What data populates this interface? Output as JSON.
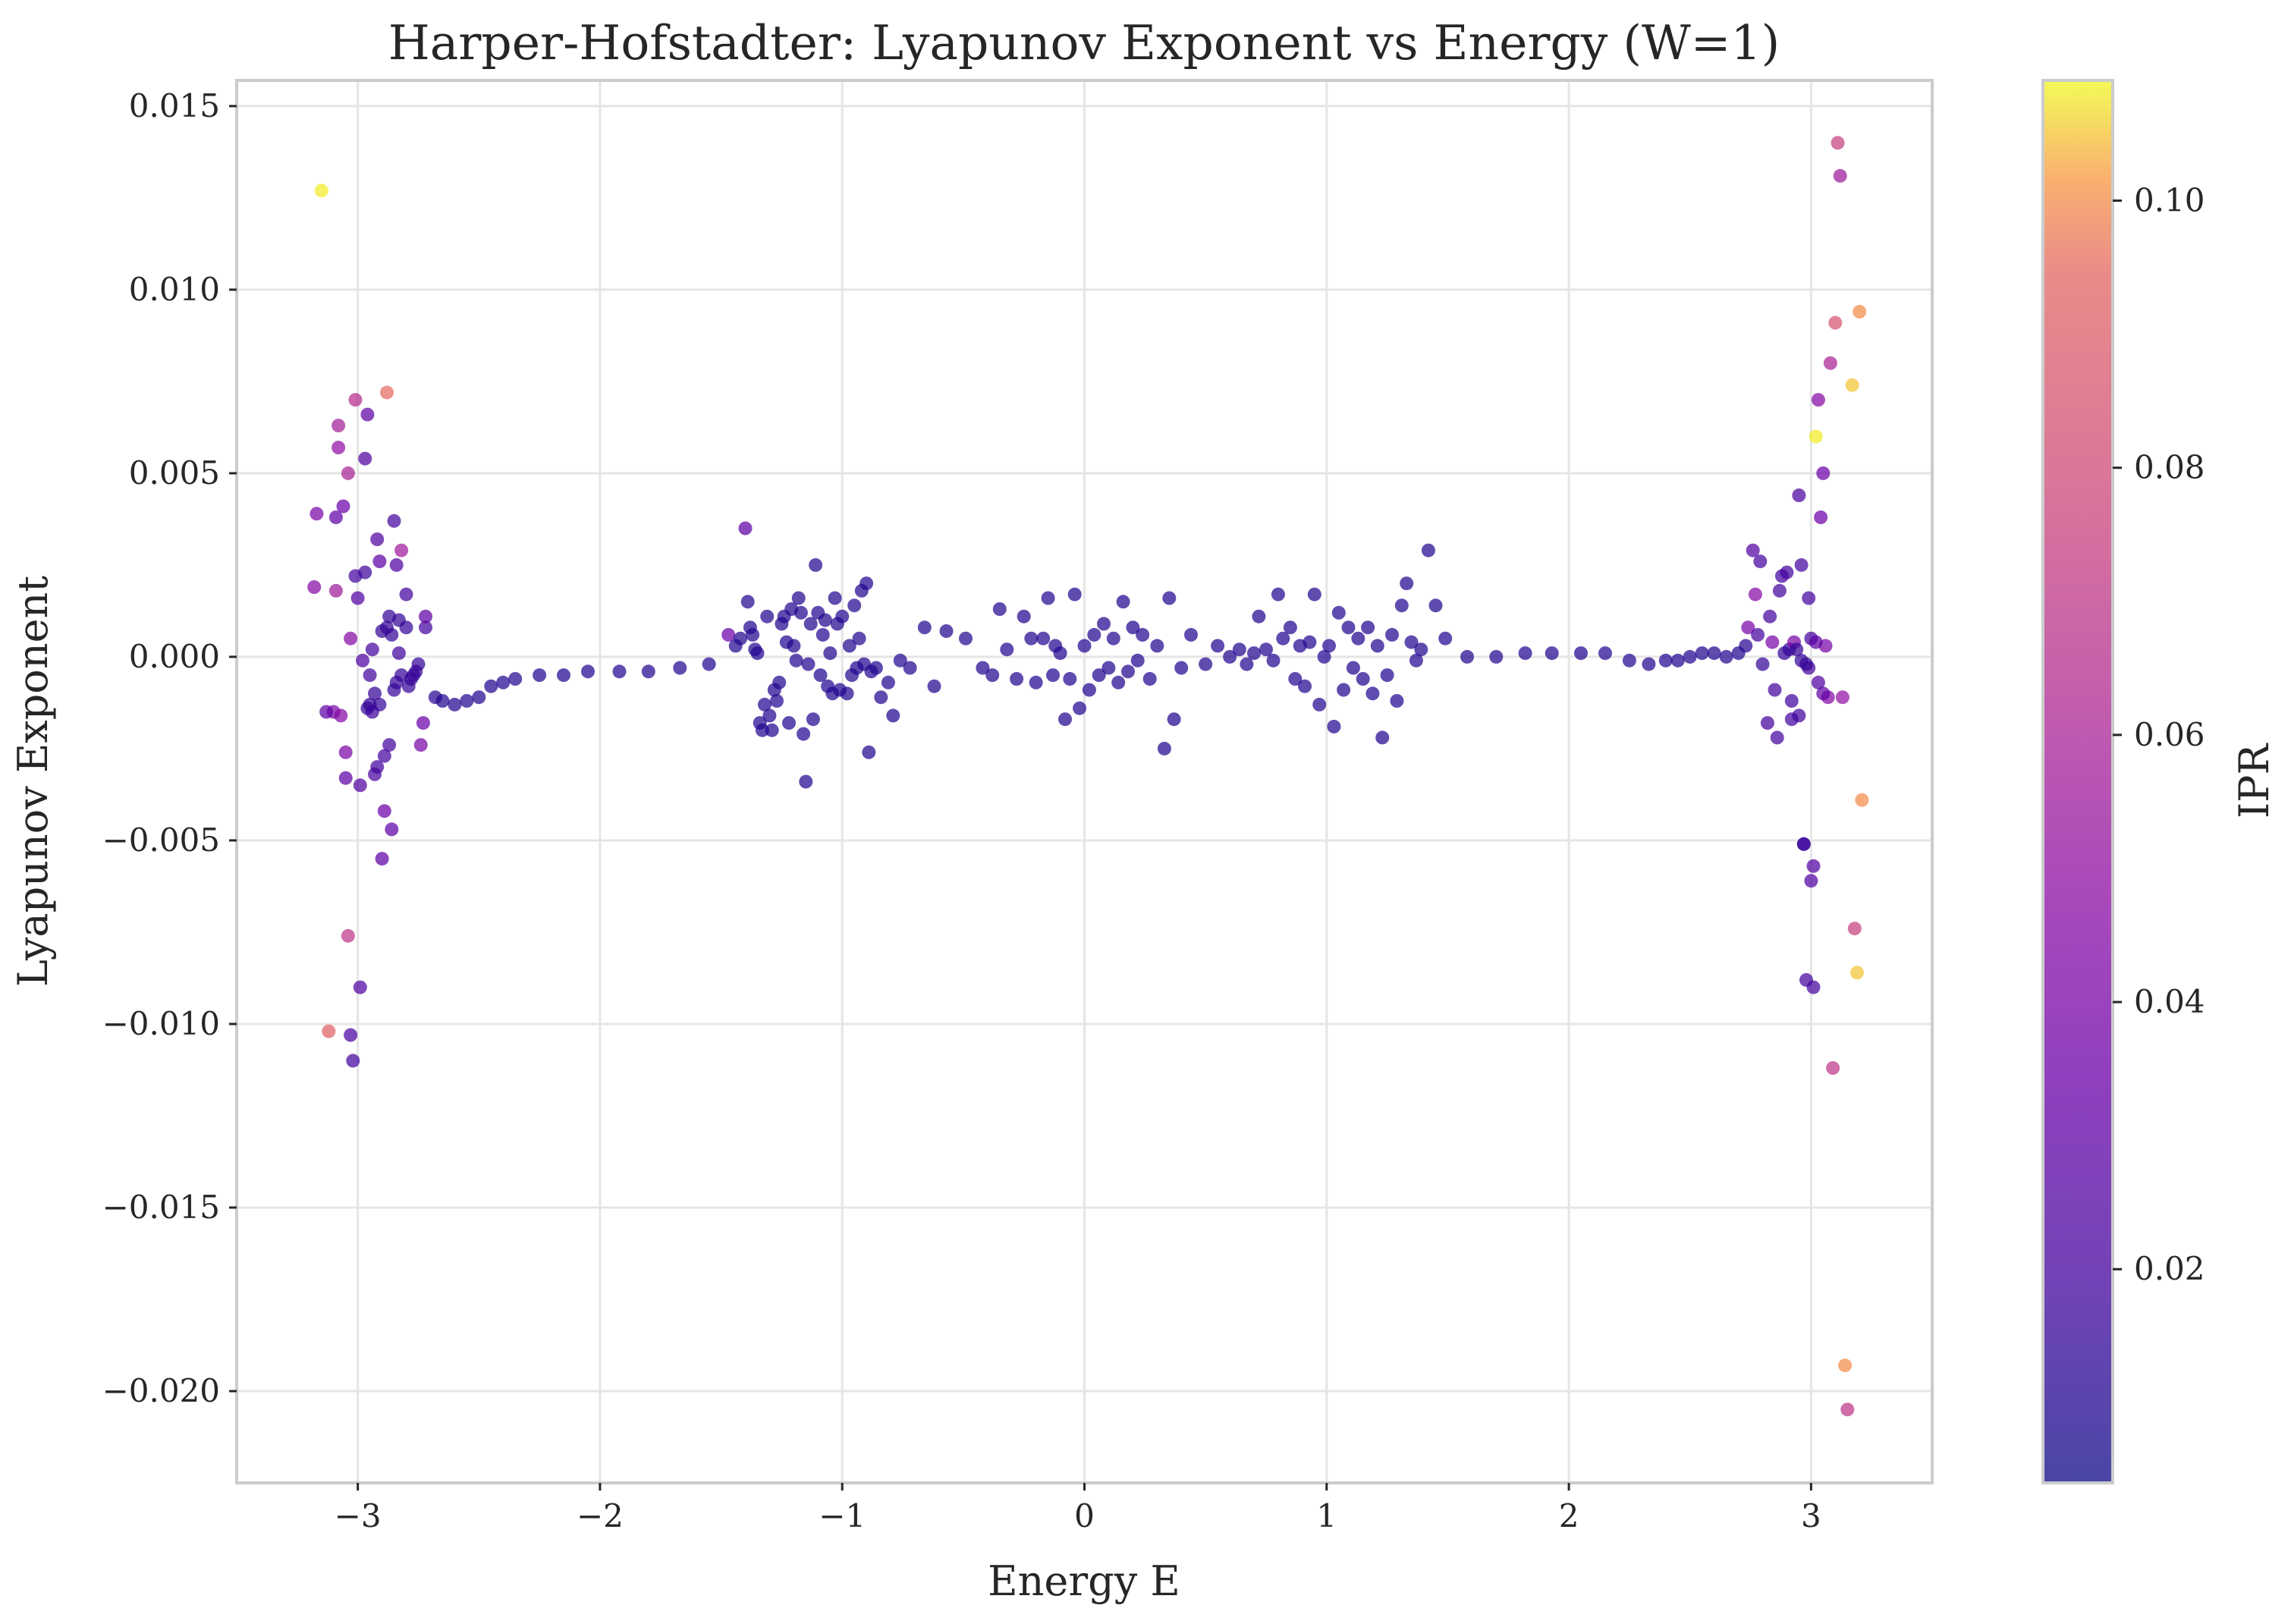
{
  "chart_data": {
    "type": "scatter",
    "title": "Harper-Hofstadter: Lyapunov Exponent vs Energy (W=1)",
    "xlabel": "Energy E",
    "ylabel": "Lyapunov Exponent",
    "xlim": [
      -3.5,
      3.5
    ],
    "ylim": [
      -0.0225,
      0.0157
    ],
    "xticks": [
      -3,
      -2,
      -1,
      0,
      1,
      2,
      3
    ],
    "xtick_labels": [
      "−3",
      "−2",
      "−1",
      "0",
      "1",
      "2",
      "3"
    ],
    "yticks": [
      -0.02,
      -0.015,
      -0.01,
      -0.005,
      0,
      0.005,
      0.01,
      0.015
    ],
    "ytick_labels": [
      "−0.020",
      "−0.015",
      "−0.010",
      "−0.005",
      "0.000",
      "0.005",
      "0.010",
      "0.015"
    ],
    "grid": true,
    "colormap": "plasma",
    "colorbar": {
      "label": "IPR",
      "range": [
        0.004,
        0.109
      ],
      "ticks": [
        0.02,
        0.04,
        0.06,
        0.08,
        0.1
      ],
      "tick_labels": [
        "0.02",
        "0.04",
        "0.06",
        "0.08",
        "0.10"
      ]
    },
    "points": [
      [
        -3.15,
        0.0127,
        0.108
      ],
      [
        -3.12,
        -0.0102,
        0.092
      ],
      [
        -3.1,
        -0.0015,
        0.04
      ],
      [
        -3.09,
        0.0018,
        0.055
      ],
      [
        -3.08,
        0.0063,
        0.058
      ],
      [
        -3.07,
        -0.0016,
        0.045
      ],
      [
        -3.06,
        0.0041,
        0.035
      ],
      [
        -3.05,
        -0.0026,
        0.04
      ],
      [
        -3.04,
        -0.0076,
        0.07
      ],
      [
        -3.03,
        -0.0103,
        0.022
      ],
      [
        -3.02,
        -0.011,
        0.02
      ],
      [
        -3.01,
        0.0022,
        0.02
      ],
      [
        -3.0,
        0.0016,
        0.025
      ],
      [
        -2.99,
        -0.009,
        0.025
      ],
      [
        -2.98,
        -0.0001,
        0.025
      ],
      [
        -2.97,
        0.0054,
        0.025
      ],
      [
        -2.96,
        0.0066,
        0.03
      ],
      [
        -2.95,
        -0.0005,
        0.02
      ],
      [
        -2.94,
        0.0002,
        0.02
      ],
      [
        -2.93,
        -0.0032,
        0.022
      ],
      [
        -2.92,
        0.0032,
        0.025
      ],
      [
        -2.91,
        0.0026,
        0.03
      ],
      [
        -2.9,
        -0.0055,
        0.03
      ],
      [
        -2.89,
        -0.0042,
        0.035
      ],
      [
        -2.88,
        0.0072,
        0.095
      ],
      [
        -2.87,
        -0.0024,
        0.02
      ],
      [
        -2.86,
        -0.0047,
        0.03
      ],
      [
        -2.85,
        0.0037,
        0.02
      ],
      [
        -2.84,
        0.0025,
        0.025
      ],
      [
        -2.83,
        0.0001,
        0.02
      ],
      [
        -2.82,
        0.0029,
        0.055
      ],
      [
        -2.8,
        0.0017,
        0.02
      ],
      [
        -2.78,
        -0.0006,
        0.018
      ],
      [
        -2.76,
        -0.0004,
        0.018
      ],
      [
        -2.74,
        -0.0024,
        0.04
      ],
      [
        -2.73,
        -0.0018,
        0.035
      ],
      [
        -3.17,
        0.0039,
        0.04
      ],
      [
        -3.13,
        -0.0015,
        0.03
      ],
      [
        -3.18,
        0.0019,
        0.045
      ],
      [
        -3.04,
        0.005,
        0.06
      ],
      [
        -3.03,
        0.0005,
        0.045
      ],
      [
        -3.05,
        -0.0033,
        0.03
      ],
      [
        -3.01,
        0.007,
        0.065
      ],
      [
        -2.99,
        -0.0035,
        0.025
      ],
      [
        -2.97,
        0.0023,
        0.018
      ],
      [
        -2.96,
        -0.0014,
        0.015
      ],
      [
        -2.95,
        -0.0013,
        0.015
      ],
      [
        -2.94,
        -0.0015,
        0.018
      ],
      [
        -2.93,
        -0.001,
        0.015
      ],
      [
        -2.92,
        -0.003,
        0.02
      ],
      [
        -2.91,
        -0.0013,
        0.015
      ],
      [
        -2.9,
        0.0007,
        0.015
      ],
      [
        -2.89,
        -0.0027,
        0.02
      ],
      [
        -2.88,
        0.0008,
        0.015
      ],
      [
        -2.87,
        0.0011,
        0.015
      ],
      [
        -2.86,
        0.0006,
        0.015
      ],
      [
        -2.85,
        -0.0009,
        0.015
      ],
      [
        -2.84,
        -0.0007,
        0.015
      ],
      [
        -2.83,
        0.001,
        0.015
      ],
      [
        -2.82,
        -0.0005,
        0.015
      ],
      [
        -2.8,
        0.0008,
        0.015
      ],
      [
        -2.79,
        -0.0008,
        0.015
      ],
      [
        -2.77,
        -0.0005,
        0.015
      ],
      [
        -2.75,
        -0.0002,
        0.015
      ],
      [
        -2.72,
        0.0008,
        0.02
      ],
      [
        -2.72,
        0.0011,
        0.03
      ],
      [
        -3.09,
        0.0038,
        0.03
      ],
      [
        -3.08,
        0.0057,
        0.05
      ],
      [
        -2.68,
        -0.0011,
        0.012
      ],
      [
        -2.65,
        -0.0012,
        0.01
      ],
      [
        -2.6,
        -0.0013,
        0.01
      ],
      [
        -2.55,
        -0.0012,
        0.01
      ],
      [
        -2.5,
        -0.0011,
        0.01
      ],
      [
        -2.45,
        -0.0008,
        0.01
      ],
      [
        -2.4,
        -0.0007,
        0.01
      ],
      [
        -2.35,
        -0.0006,
        0.01
      ],
      [
        -2.25,
        -0.0005,
        0.01
      ],
      [
        -2.15,
        -0.0005,
        0.01
      ],
      [
        -2.05,
        -0.0004,
        0.01
      ],
      [
        -1.92,
        -0.0004,
        0.01
      ],
      [
        -1.8,
        -0.0004,
        0.01
      ],
      [
        -1.67,
        -0.0003,
        0.01
      ],
      [
        -1.55,
        -0.0002,
        0.01
      ],
      [
        -1.47,
        0.0006,
        0.035
      ],
      [
        -1.44,
        0.0003,
        0.01
      ],
      [
        -1.42,
        0.0005,
        0.01
      ],
      [
        -1.4,
        0.0035,
        0.03
      ],
      [
        -1.39,
        0.0015,
        0.01
      ],
      [
        -1.38,
        0.0008,
        0.01
      ],
      [
        -1.37,
        0.0006,
        0.01
      ],
      [
        -1.36,
        0.0002,
        0.01
      ],
      [
        -1.35,
        0.0001,
        0.01
      ],
      [
        -1.34,
        -0.0018,
        0.01
      ],
      [
        -1.33,
        -0.002,
        0.01
      ],
      [
        -1.32,
        -0.0013,
        0.01
      ],
      [
        -1.31,
        0.0011,
        0.01
      ],
      [
        -1.3,
        -0.0016,
        0.01
      ],
      [
        -1.29,
        -0.002,
        0.01
      ],
      [
        -1.28,
        -0.0009,
        0.01
      ],
      [
        -1.27,
        -0.0012,
        0.01
      ],
      [
        -1.26,
        -0.0007,
        0.01
      ],
      [
        -1.25,
        0.0009,
        0.01
      ],
      [
        -1.24,
        0.0011,
        0.01
      ],
      [
        -1.23,
        0.0004,
        0.01
      ],
      [
        -1.22,
        -0.0018,
        0.01
      ],
      [
        -1.21,
        0.0013,
        0.01
      ],
      [
        -1.2,
        0.0003,
        0.01
      ],
      [
        -1.19,
        -0.0001,
        0.01
      ],
      [
        -1.18,
        0.0016,
        0.01
      ],
      [
        -1.17,
        0.0012,
        0.01
      ],
      [
        -1.16,
        -0.0021,
        0.01
      ],
      [
        -1.15,
        -0.0034,
        0.01
      ],
      [
        -1.14,
        -0.0002,
        0.01
      ],
      [
        -1.13,
        0.0009,
        0.01
      ],
      [
        -1.12,
        -0.0017,
        0.01
      ],
      [
        -1.11,
        0.0025,
        0.01
      ],
      [
        -1.1,
        0.0012,
        0.01
      ],
      [
        -1.09,
        -0.0005,
        0.01
      ],
      [
        -1.08,
        0.0006,
        0.01
      ],
      [
        -1.07,
        0.001,
        0.01
      ],
      [
        -1.06,
        -0.0008,
        0.01
      ],
      [
        -1.05,
        0.0001,
        0.01
      ],
      [
        -1.04,
        -0.001,
        0.01
      ],
      [
        -1.03,
        0.0016,
        0.01
      ],
      [
        -1.02,
        0.0009,
        0.01
      ],
      [
        -1.01,
        -0.0009,
        0.01
      ],
      [
        -1.0,
        0.0011,
        0.01
      ],
      [
        -0.98,
        -0.001,
        0.01
      ],
      [
        -0.97,
        0.0003,
        0.01
      ],
      [
        -0.96,
        -0.0005,
        0.01
      ],
      [
        -0.95,
        0.0014,
        0.01
      ],
      [
        -0.94,
        -0.0003,
        0.01
      ],
      [
        -0.93,
        0.0005,
        0.01
      ],
      [
        -0.92,
        0.0018,
        0.01
      ],
      [
        -0.91,
        -0.0002,
        0.01
      ],
      [
        -0.9,
        0.002,
        0.01
      ],
      [
        -0.89,
        -0.0026,
        0.01
      ],
      [
        -0.88,
        -0.0004,
        0.01
      ],
      [
        -0.86,
        -0.0003,
        0.01
      ],
      [
        -0.84,
        -0.0011,
        0.01
      ],
      [
        -0.81,
        -0.0007,
        0.01
      ],
      [
        -0.79,
        -0.0016,
        0.01
      ],
      [
        -0.76,
        -0.0001,
        0.01
      ],
      [
        -0.72,
        -0.0003,
        0.01
      ],
      [
        -0.66,
        0.0008,
        0.01
      ],
      [
        -0.62,
        -0.0008,
        0.01
      ],
      [
        -0.57,
        0.0007,
        0.01
      ],
      [
        -0.49,
        0.0005,
        0.01
      ],
      [
        -0.42,
        -0.0003,
        0.01
      ],
      [
        -0.38,
        -0.0005,
        0.01
      ],
      [
        -0.35,
        0.0013,
        0.01
      ],
      [
        -0.32,
        0.0002,
        0.01
      ],
      [
        -0.28,
        -0.0006,
        0.01
      ],
      [
        -0.25,
        0.0011,
        0.01
      ],
      [
        -0.22,
        0.0005,
        0.01
      ],
      [
        -0.2,
        -0.0007,
        0.01
      ],
      [
        -0.17,
        0.0005,
        0.01
      ],
      [
        -0.15,
        0.0016,
        0.01
      ],
      [
        -0.13,
        -0.0005,
        0.01
      ],
      [
        -0.12,
        0.0003,
        0.01
      ],
      [
        -0.1,
        0.0001,
        0.01
      ],
      [
        -0.08,
        -0.0017,
        0.01
      ],
      [
        -0.06,
        -0.0006,
        0.01
      ],
      [
        -0.04,
        0.0017,
        0.01
      ],
      [
        -0.02,
        -0.0014,
        0.01
      ],
      [
        0.0,
        0.0003,
        0.01
      ],
      [
        0.02,
        -0.0009,
        0.01
      ],
      [
        0.04,
        0.0006,
        0.01
      ],
      [
        0.06,
        -0.0005,
        0.01
      ],
      [
        0.08,
        0.0009,
        0.01
      ],
      [
        0.1,
        -0.0003,
        0.01
      ],
      [
        0.12,
        0.0005,
        0.01
      ],
      [
        0.14,
        -0.0007,
        0.01
      ],
      [
        0.16,
        0.0015,
        0.01
      ],
      [
        0.18,
        -0.0004,
        0.01
      ],
      [
        0.2,
        0.0008,
        0.01
      ],
      [
        0.22,
        -0.0001,
        0.01
      ],
      [
        0.24,
        0.0006,
        0.01
      ],
      [
        0.27,
        -0.0006,
        0.01
      ],
      [
        0.3,
        0.0003,
        0.01
      ],
      [
        0.33,
        -0.0025,
        0.01
      ],
      [
        0.35,
        0.0016,
        0.01
      ],
      [
        0.37,
        -0.0017,
        0.01
      ],
      [
        0.4,
        -0.0003,
        0.01
      ],
      [
        0.44,
        0.0006,
        0.01
      ],
      [
        0.5,
        -0.0002,
        0.01
      ],
      [
        0.55,
        0.0003,
        0.01
      ],
      [
        0.6,
        0.0,
        0.01
      ],
      [
        0.64,
        0.0002,
        0.01
      ],
      [
        0.67,
        -0.0002,
        0.01
      ],
      [
        0.7,
        0.0001,
        0.01
      ],
      [
        0.72,
        0.0011,
        0.01
      ],
      [
        0.75,
        0.0002,
        0.01
      ],
      [
        0.78,
        -0.0001,
        0.01
      ],
      [
        0.8,
        0.0017,
        0.01
      ],
      [
        0.82,
        0.0005,
        0.01
      ],
      [
        0.85,
        0.0008,
        0.01
      ],
      [
        0.87,
        -0.0006,
        0.01
      ],
      [
        0.89,
        0.0003,
        0.01
      ],
      [
        0.91,
        -0.0008,
        0.01
      ],
      [
        0.93,
        0.0004,
        0.01
      ],
      [
        0.95,
        0.0017,
        0.01
      ],
      [
        0.97,
        -0.0013,
        0.01
      ],
      [
        0.99,
        0.0,
        0.01
      ],
      [
        1.01,
        0.0003,
        0.01
      ],
      [
        1.03,
        -0.0019,
        0.01
      ],
      [
        1.05,
        0.0012,
        0.01
      ],
      [
        1.07,
        -0.0009,
        0.01
      ],
      [
        1.09,
        0.0008,
        0.01
      ],
      [
        1.11,
        -0.0003,
        0.01
      ],
      [
        1.13,
        0.0005,
        0.01
      ],
      [
        1.15,
        -0.0006,
        0.01
      ],
      [
        1.17,
        0.0008,
        0.01
      ],
      [
        1.19,
        -0.001,
        0.01
      ],
      [
        1.21,
        0.0003,
        0.01
      ],
      [
        1.23,
        -0.0022,
        0.01
      ],
      [
        1.25,
        -0.0005,
        0.01
      ],
      [
        1.27,
        0.0006,
        0.01
      ],
      [
        1.29,
        -0.0012,
        0.01
      ],
      [
        1.31,
        0.0014,
        0.01
      ],
      [
        1.33,
        0.002,
        0.01
      ],
      [
        1.35,
        0.0004,
        0.01
      ],
      [
        1.37,
        -0.0001,
        0.01
      ],
      [
        1.39,
        0.0002,
        0.01
      ],
      [
        1.42,
        0.0029,
        0.01
      ],
      [
        1.45,
        0.0014,
        0.01
      ],
      [
        1.49,
        0.0005,
        0.01
      ],
      [
        1.58,
        0.0,
        0.01
      ],
      [
        1.7,
        0.0,
        0.01
      ],
      [
        1.82,
        0.0001,
        0.01
      ],
      [
        1.93,
        0.0001,
        0.01
      ],
      [
        2.05,
        0.0001,
        0.01
      ],
      [
        2.15,
        0.0001,
        0.01
      ],
      [
        2.25,
        -0.0001,
        0.01
      ],
      [
        2.33,
        -0.0002,
        0.01
      ],
      [
        2.4,
        -0.0001,
        0.01
      ],
      [
        2.45,
        -0.0001,
        0.01
      ],
      [
        2.5,
        0.0,
        0.01
      ],
      [
        2.55,
        0.0001,
        0.01
      ],
      [
        2.6,
        0.0001,
        0.01
      ],
      [
        2.65,
        0.0,
        0.01
      ],
      [
        2.7,
        0.0001,
        0.01
      ],
      [
        2.73,
        0.0003,
        0.012
      ],
      [
        2.74,
        0.0008,
        0.04
      ],
      [
        2.76,
        0.0029,
        0.025
      ],
      [
        2.77,
        0.0017,
        0.045
      ],
      [
        2.78,
        0.0006,
        0.02
      ],
      [
        2.79,
        0.0026,
        0.02
      ],
      [
        2.8,
        -0.0002,
        0.015
      ],
      [
        2.82,
        -0.0018,
        0.02
      ],
      [
        2.83,
        0.0011,
        0.02
      ],
      [
        2.84,
        0.0004,
        0.04
      ],
      [
        2.85,
        -0.0009,
        0.02
      ],
      [
        2.86,
        -0.0022,
        0.02
      ],
      [
        2.87,
        0.0018,
        0.02
      ],
      [
        2.88,
        0.0022,
        0.02
      ],
      [
        2.89,
        0.0001,
        0.015
      ],
      [
        2.9,
        0.0023,
        0.02
      ],
      [
        2.91,
        0.0002,
        0.015
      ],
      [
        2.92,
        -0.0017,
        0.02
      ],
      [
        2.93,
        0.0004,
        0.04
      ],
      [
        2.94,
        0.0002,
        0.015
      ],
      [
        2.95,
        0.0044,
        0.022
      ],
      [
        2.96,
        0.0025,
        0.02
      ],
      [
        2.97,
        -0.0051,
        0.015
      ],
      [
        2.98,
        -0.0088,
        0.02
      ],
      [
        2.99,
        0.0016,
        0.02
      ],
      [
        3.0,
        -0.0061,
        0.025
      ],
      [
        3.01,
        -0.009,
        0.02
      ],
      [
        3.02,
        0.006,
        0.108
      ],
      [
        3.03,
        0.007,
        0.045
      ],
      [
        3.04,
        0.0038,
        0.035
      ],
      [
        3.05,
        0.005,
        0.035
      ],
      [
        3.06,
        0.0003,
        0.04
      ],
      [
        3.07,
        -0.0011,
        0.045
      ],
      [
        3.08,
        0.008,
        0.06
      ],
      [
        3.09,
        -0.0112,
        0.07
      ],
      [
        3.1,
        0.0091,
        0.085
      ],
      [
        3.11,
        0.014,
        0.075
      ],
      [
        3.12,
        0.0131,
        0.055
      ],
      [
        3.13,
        -0.0011,
        0.05
      ],
      [
        3.14,
        -0.0193,
        0.1
      ],
      [
        3.15,
        -0.0205,
        0.07
      ],
      [
        3.17,
        0.0074,
        0.105
      ],
      [
        3.18,
        -0.0074,
        0.075
      ],
      [
        3.19,
        -0.0086,
        0.105
      ],
      [
        3.2,
        0.0094,
        0.1
      ],
      [
        3.21,
        -0.0039,
        0.1
      ],
      [
        2.97,
        -0.0051,
        0.018
      ],
      [
        2.95,
        -0.0016,
        0.018
      ],
      [
        2.92,
        -0.0012,
        0.018
      ],
      [
        3.05,
        -0.001,
        0.03
      ],
      [
        3.03,
        -0.0007,
        0.025
      ],
      [
        3.0,
        0.0005,
        0.02
      ],
      [
        3.02,
        0.0004,
        0.03
      ],
      [
        2.99,
        -0.0003,
        0.02
      ],
      [
        3.01,
        -0.0057,
        0.025
      ],
      [
        2.98,
        -0.0002,
        0.015
      ],
      [
        2.96,
        -0.0001,
        0.015
      ]
    ]
  }
}
